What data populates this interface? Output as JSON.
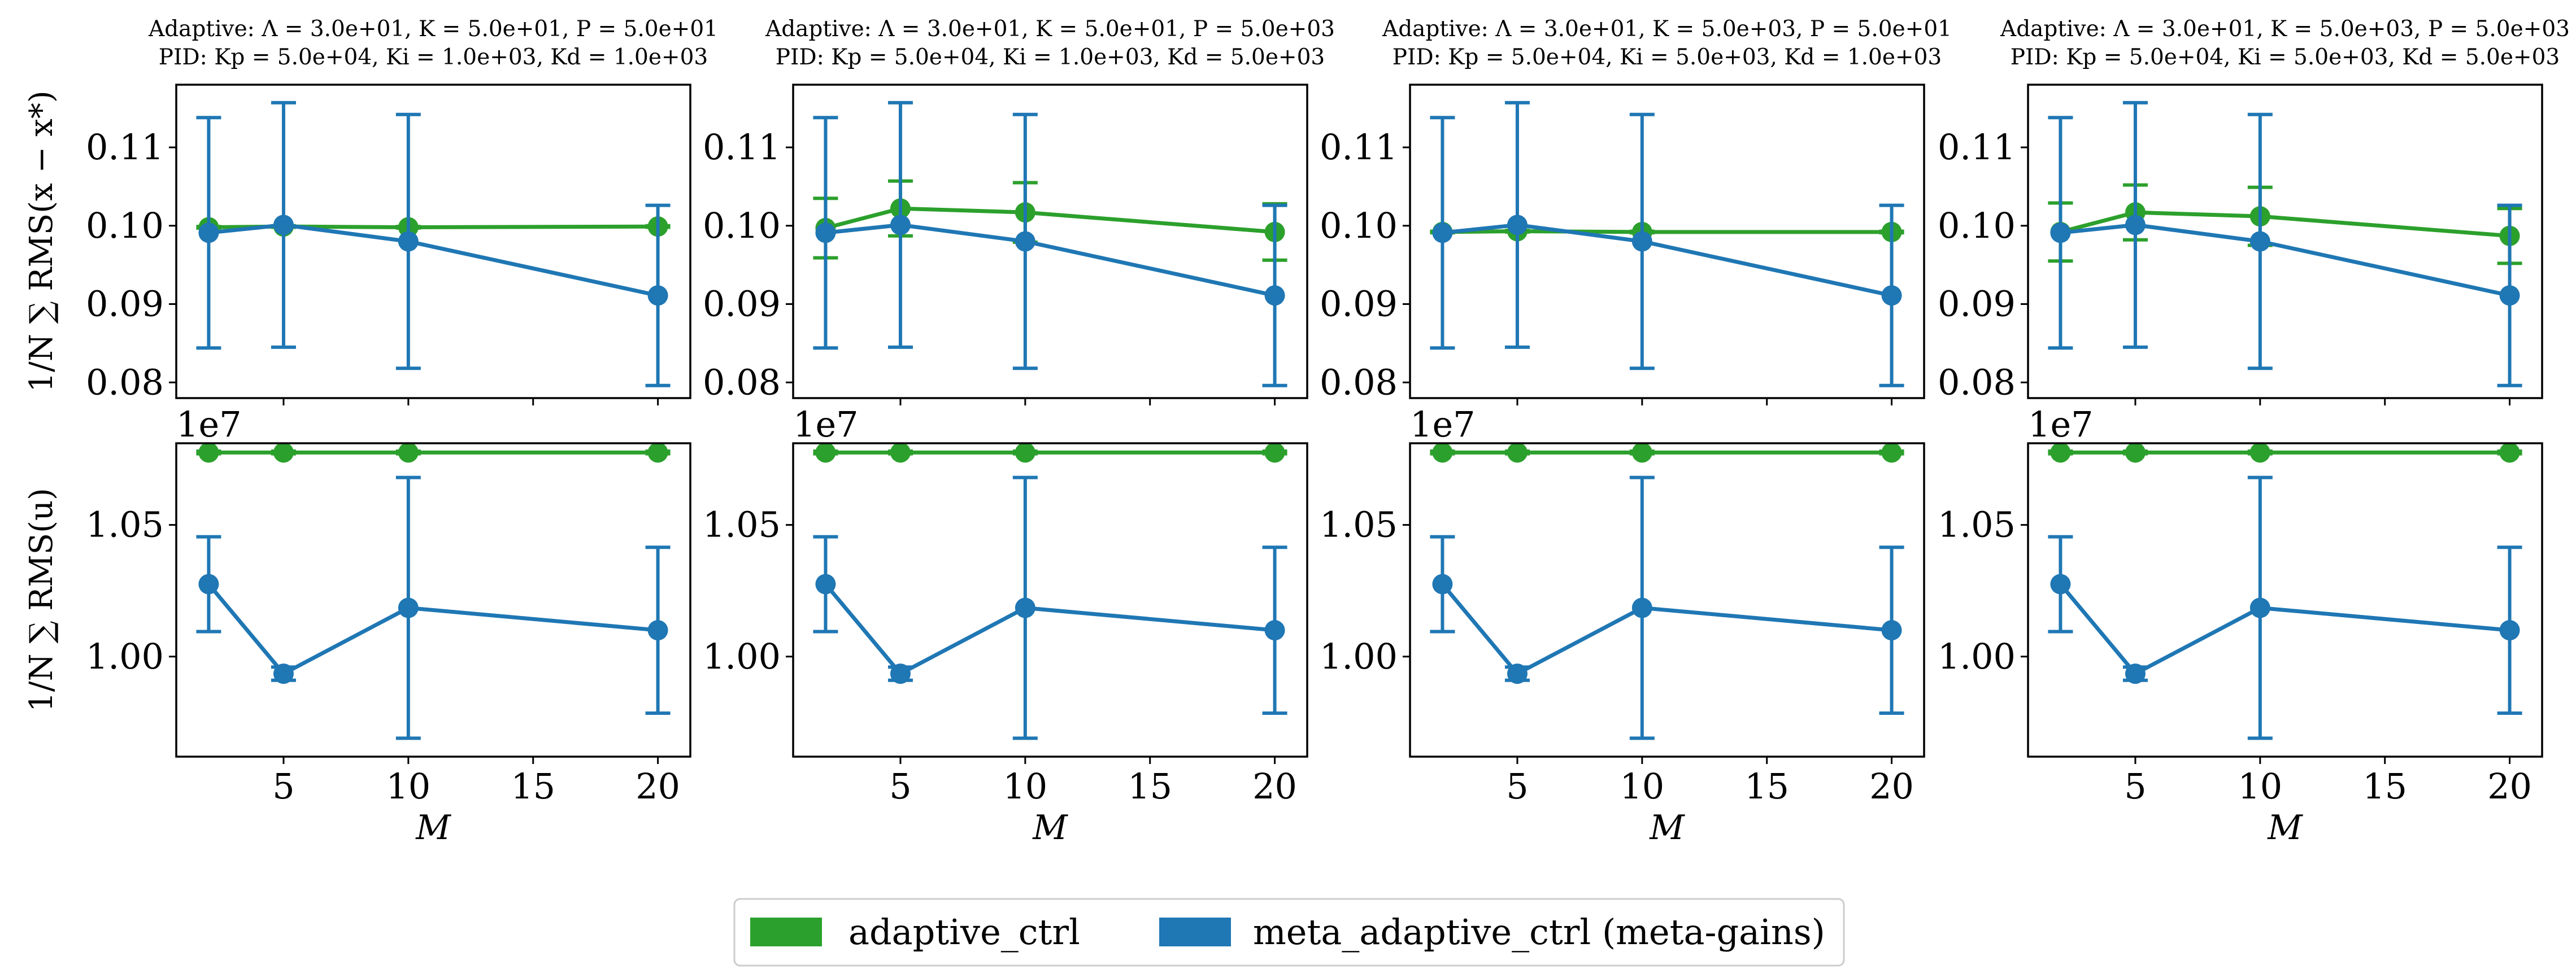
{
  "colors": {
    "adaptive": "#2ca02c",
    "meta": "#1f77b4"
  },
  "chart_data": {
    "type": "line",
    "grid": false,
    "legend_position": "bottom-center",
    "legend": [
      "adaptive_ctrl",
      "meta_adaptive_ctrl (meta-gains)"
    ],
    "x": [
      2,
      5,
      10,
      20
    ],
    "xlabel": "M",
    "xticks": [
      "5",
      "10",
      "15",
      "20"
    ],
    "xlim": [
      0.7,
      21.3
    ],
    "row_ylabels": [
      "1/N ∑ RMS(x − x*)",
      "1/N ∑ RMS(u)"
    ],
    "rows": [
      {
        "name": "state",
        "ylim": [
          0.078,
          0.118
        ],
        "yticks": [
          0.08,
          0.09,
          0.1,
          0.11
        ],
        "ytick_labels": [
          "0.08",
          "0.09",
          "0.10",
          "0.11"
        ],
        "offset_text": ""
      },
      {
        "name": "control",
        "ylim": [
          0.962,
          1.081
        ],
        "yticks": [
          1.0,
          1.05
        ],
        "ytick_labels": [
          "1.00",
          "1.05"
        ],
        "offset_text": "1e7"
      }
    ],
    "columns": [
      {
        "title_line1": "Adaptive: Λ = 3.0e+01, K = 5.0e+01, P = 5.0e+01",
        "title_line2": "PID: Kp = 5.0e+04, Ki = 1.0e+03, Kd = 1.0e+03",
        "state": {
          "adaptive": {
            "values": [
              0.0998,
              0.0999,
              0.0998,
              0.0999
            ],
            "err": [
              0.0001,
              0.0001,
              0.0001,
              0.0001
            ]
          },
          "meta": {
            "values": [
              0.0991,
              0.1001,
              0.098,
              0.0911
            ],
            "err": [
              0.0147,
              0.0156,
              0.0162,
              0.0115
            ]
          }
        },
        "control": {
          "adaptive": {
            "values": [
              1.0775,
              1.0775,
              1.0775,
              1.0775
            ],
            "err": [
              0.0005,
              0.0005,
              0.0005,
              0.0005
            ]
          },
          "meta": {
            "values": [
              1.0275,
              0.9935,
              1.0185,
              1.01
            ],
            "err": [
              0.018,
              0.0025,
              0.0495,
              0.0315
            ]
          }
        }
      },
      {
        "title_line1": "Adaptive: Λ = 3.0e+01, K = 5.0e+01, P = 5.0e+03",
        "title_line2": "PID: Kp = 5.0e+04, Ki = 1.0e+03, Kd = 5.0e+03",
        "state": {
          "adaptive": {
            "values": [
              0.0997,
              0.1022,
              0.1017,
              0.0992
            ],
            "err": [
              0.0038,
              0.0035,
              0.0038,
              0.0036
            ]
          },
          "meta": {
            "values": [
              0.0991,
              0.1001,
              0.098,
              0.0911
            ],
            "err": [
              0.0147,
              0.0156,
              0.0162,
              0.0115
            ]
          }
        },
        "control": {
          "adaptive": {
            "values": [
              1.0775,
              1.0775,
              1.0775,
              1.0775
            ],
            "err": [
              0.0005,
              0.0005,
              0.0005,
              0.0005
            ]
          },
          "meta": {
            "values": [
              1.0275,
              0.9935,
              1.0185,
              1.01
            ],
            "err": [
              0.018,
              0.0025,
              0.0495,
              0.0315
            ]
          }
        }
      },
      {
        "title_line1": "Adaptive: Λ = 3.0e+01, K = 5.0e+03, P = 5.0e+01",
        "title_line2": "PID: Kp = 5.0e+04, Ki = 5.0e+03, Kd = 1.0e+03",
        "state": {
          "adaptive": {
            "values": [
              0.0992,
              0.0993,
              0.0992,
              0.0992
            ],
            "err": [
              0.0001,
              0.0001,
              0.0001,
              0.0001
            ]
          },
          "meta": {
            "values": [
              0.0991,
              0.1001,
              0.098,
              0.0911
            ],
            "err": [
              0.0147,
              0.0156,
              0.0162,
              0.0115
            ]
          }
        },
        "control": {
          "adaptive": {
            "values": [
              1.0775,
              1.0775,
              1.0775,
              1.0775
            ],
            "err": [
              0.0005,
              0.0005,
              0.0005,
              0.0005
            ]
          },
          "meta": {
            "values": [
              1.0275,
              0.9935,
              1.0185,
              1.01
            ],
            "err": [
              0.018,
              0.0025,
              0.0495,
              0.0315
            ]
          }
        }
      },
      {
        "title_line1": "Adaptive: Λ = 3.0e+01, K = 5.0e+03, P = 5.0e+03",
        "title_line2": "PID: Kp = 5.0e+04, Ki = 5.0e+03, Kd = 5.0e+03",
        "state": {
          "adaptive": {
            "values": [
              0.0992,
              0.1017,
              0.1012,
              0.0987
            ],
            "err": [
              0.0037,
              0.0035,
              0.0037,
              0.0035
            ]
          },
          "meta": {
            "values": [
              0.0991,
              0.1001,
              0.098,
              0.0911
            ],
            "err": [
              0.0147,
              0.0156,
              0.0162,
              0.0115
            ]
          }
        },
        "control": {
          "adaptive": {
            "values": [
              1.0775,
              1.0775,
              1.0775,
              1.0775
            ],
            "err": [
              0.0005,
              0.0005,
              0.0005,
              0.0005
            ]
          },
          "meta": {
            "values": [
              1.0275,
              0.9935,
              1.0185,
              1.01
            ],
            "err": [
              0.018,
              0.0025,
              0.0495,
              0.0315
            ]
          }
        }
      }
    ]
  }
}
